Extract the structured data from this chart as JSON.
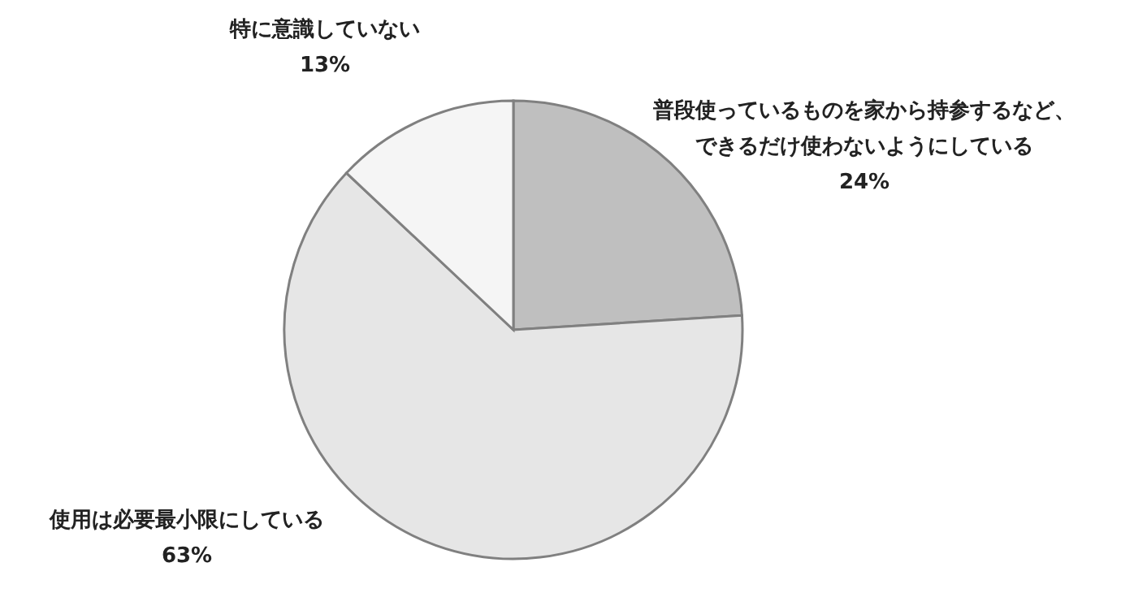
{
  "chart_data": {
    "type": "pie",
    "categories": [
      "普段使っているものを家から持参するなど、できるだけ使わないようにしている",
      "使用は必要最小限にしている",
      "特に意識していない"
    ],
    "values": [
      24,
      63,
      13
    ],
    "colors": [
      "#bfbfbf",
      "#e6e6e6",
      "#f5f5f5"
    ],
    "value_labels": [
      "24%",
      "63%",
      "13%"
    ],
    "legend": false
  }
}
